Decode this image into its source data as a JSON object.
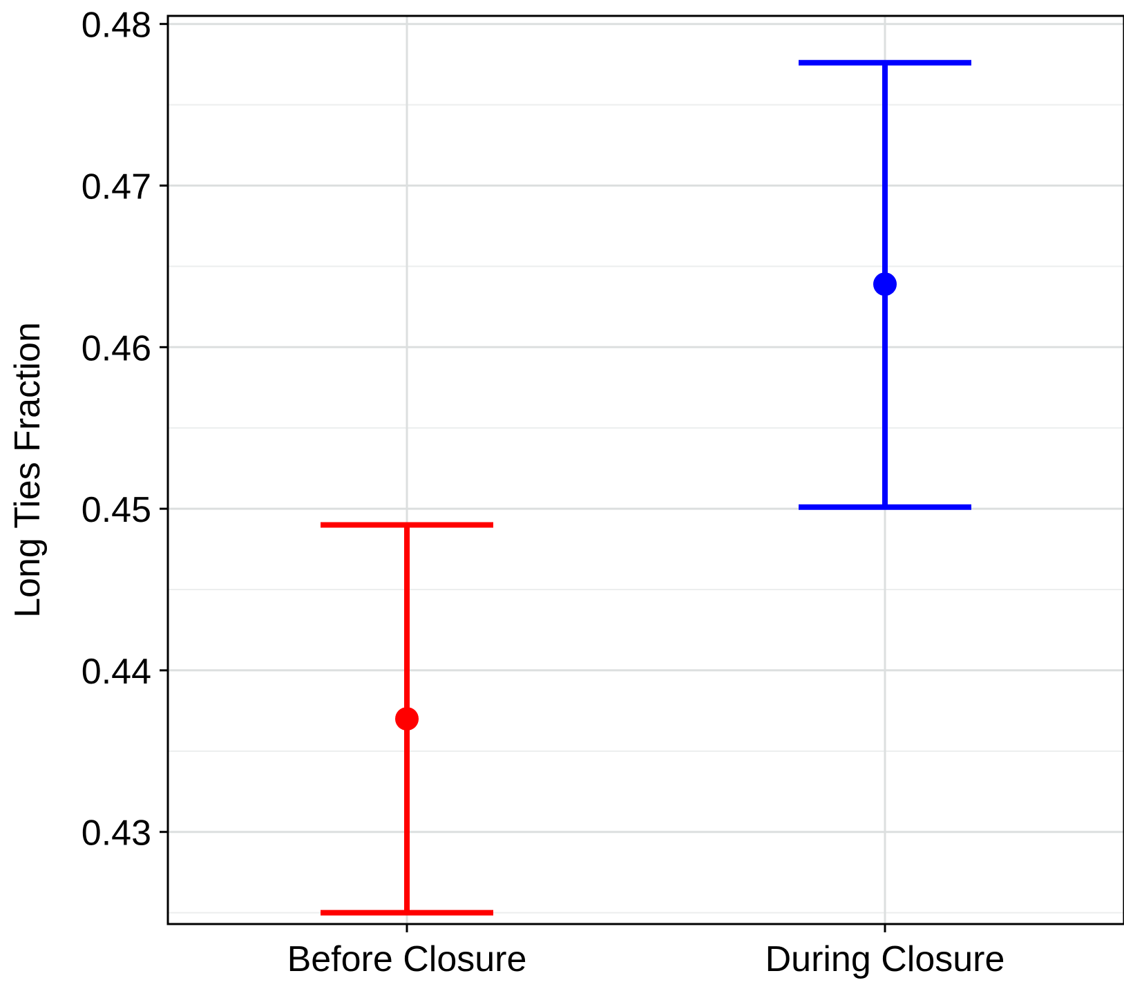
{
  "chart_data": {
    "type": "errorbar",
    "title": "",
    "xlabel": "",
    "ylabel": "Long Ties Fraction",
    "ylim": [
      0.4243,
      0.4805
    ],
    "yticks": [
      0.43,
      0.44,
      0.45,
      0.46,
      0.47,
      0.48
    ],
    "ytick_labels": [
      "0.43",
      "0.44",
      "0.45",
      "0.46",
      "0.47",
      "0.48"
    ],
    "y_minor_grid": [
      0.425,
      0.435,
      0.445,
      0.455,
      0.465,
      0.475
    ],
    "categories": [
      "Before Closure",
      "During Closure"
    ],
    "grid": true,
    "legend": "none",
    "points": [
      {
        "category": "Before Closure",
        "value": 0.437,
        "lower": 0.425,
        "upper": 0.449,
        "color": "#ff0000"
      },
      {
        "category": "During Closure",
        "value": 0.4639,
        "lower": 0.4501,
        "upper": 0.4776,
        "color": "#0000ff"
      }
    ],
    "colors": {
      "major_grid": "#dcdfdf",
      "minor_grid": "#eceeee",
      "panel_border": "#000000"
    }
  }
}
